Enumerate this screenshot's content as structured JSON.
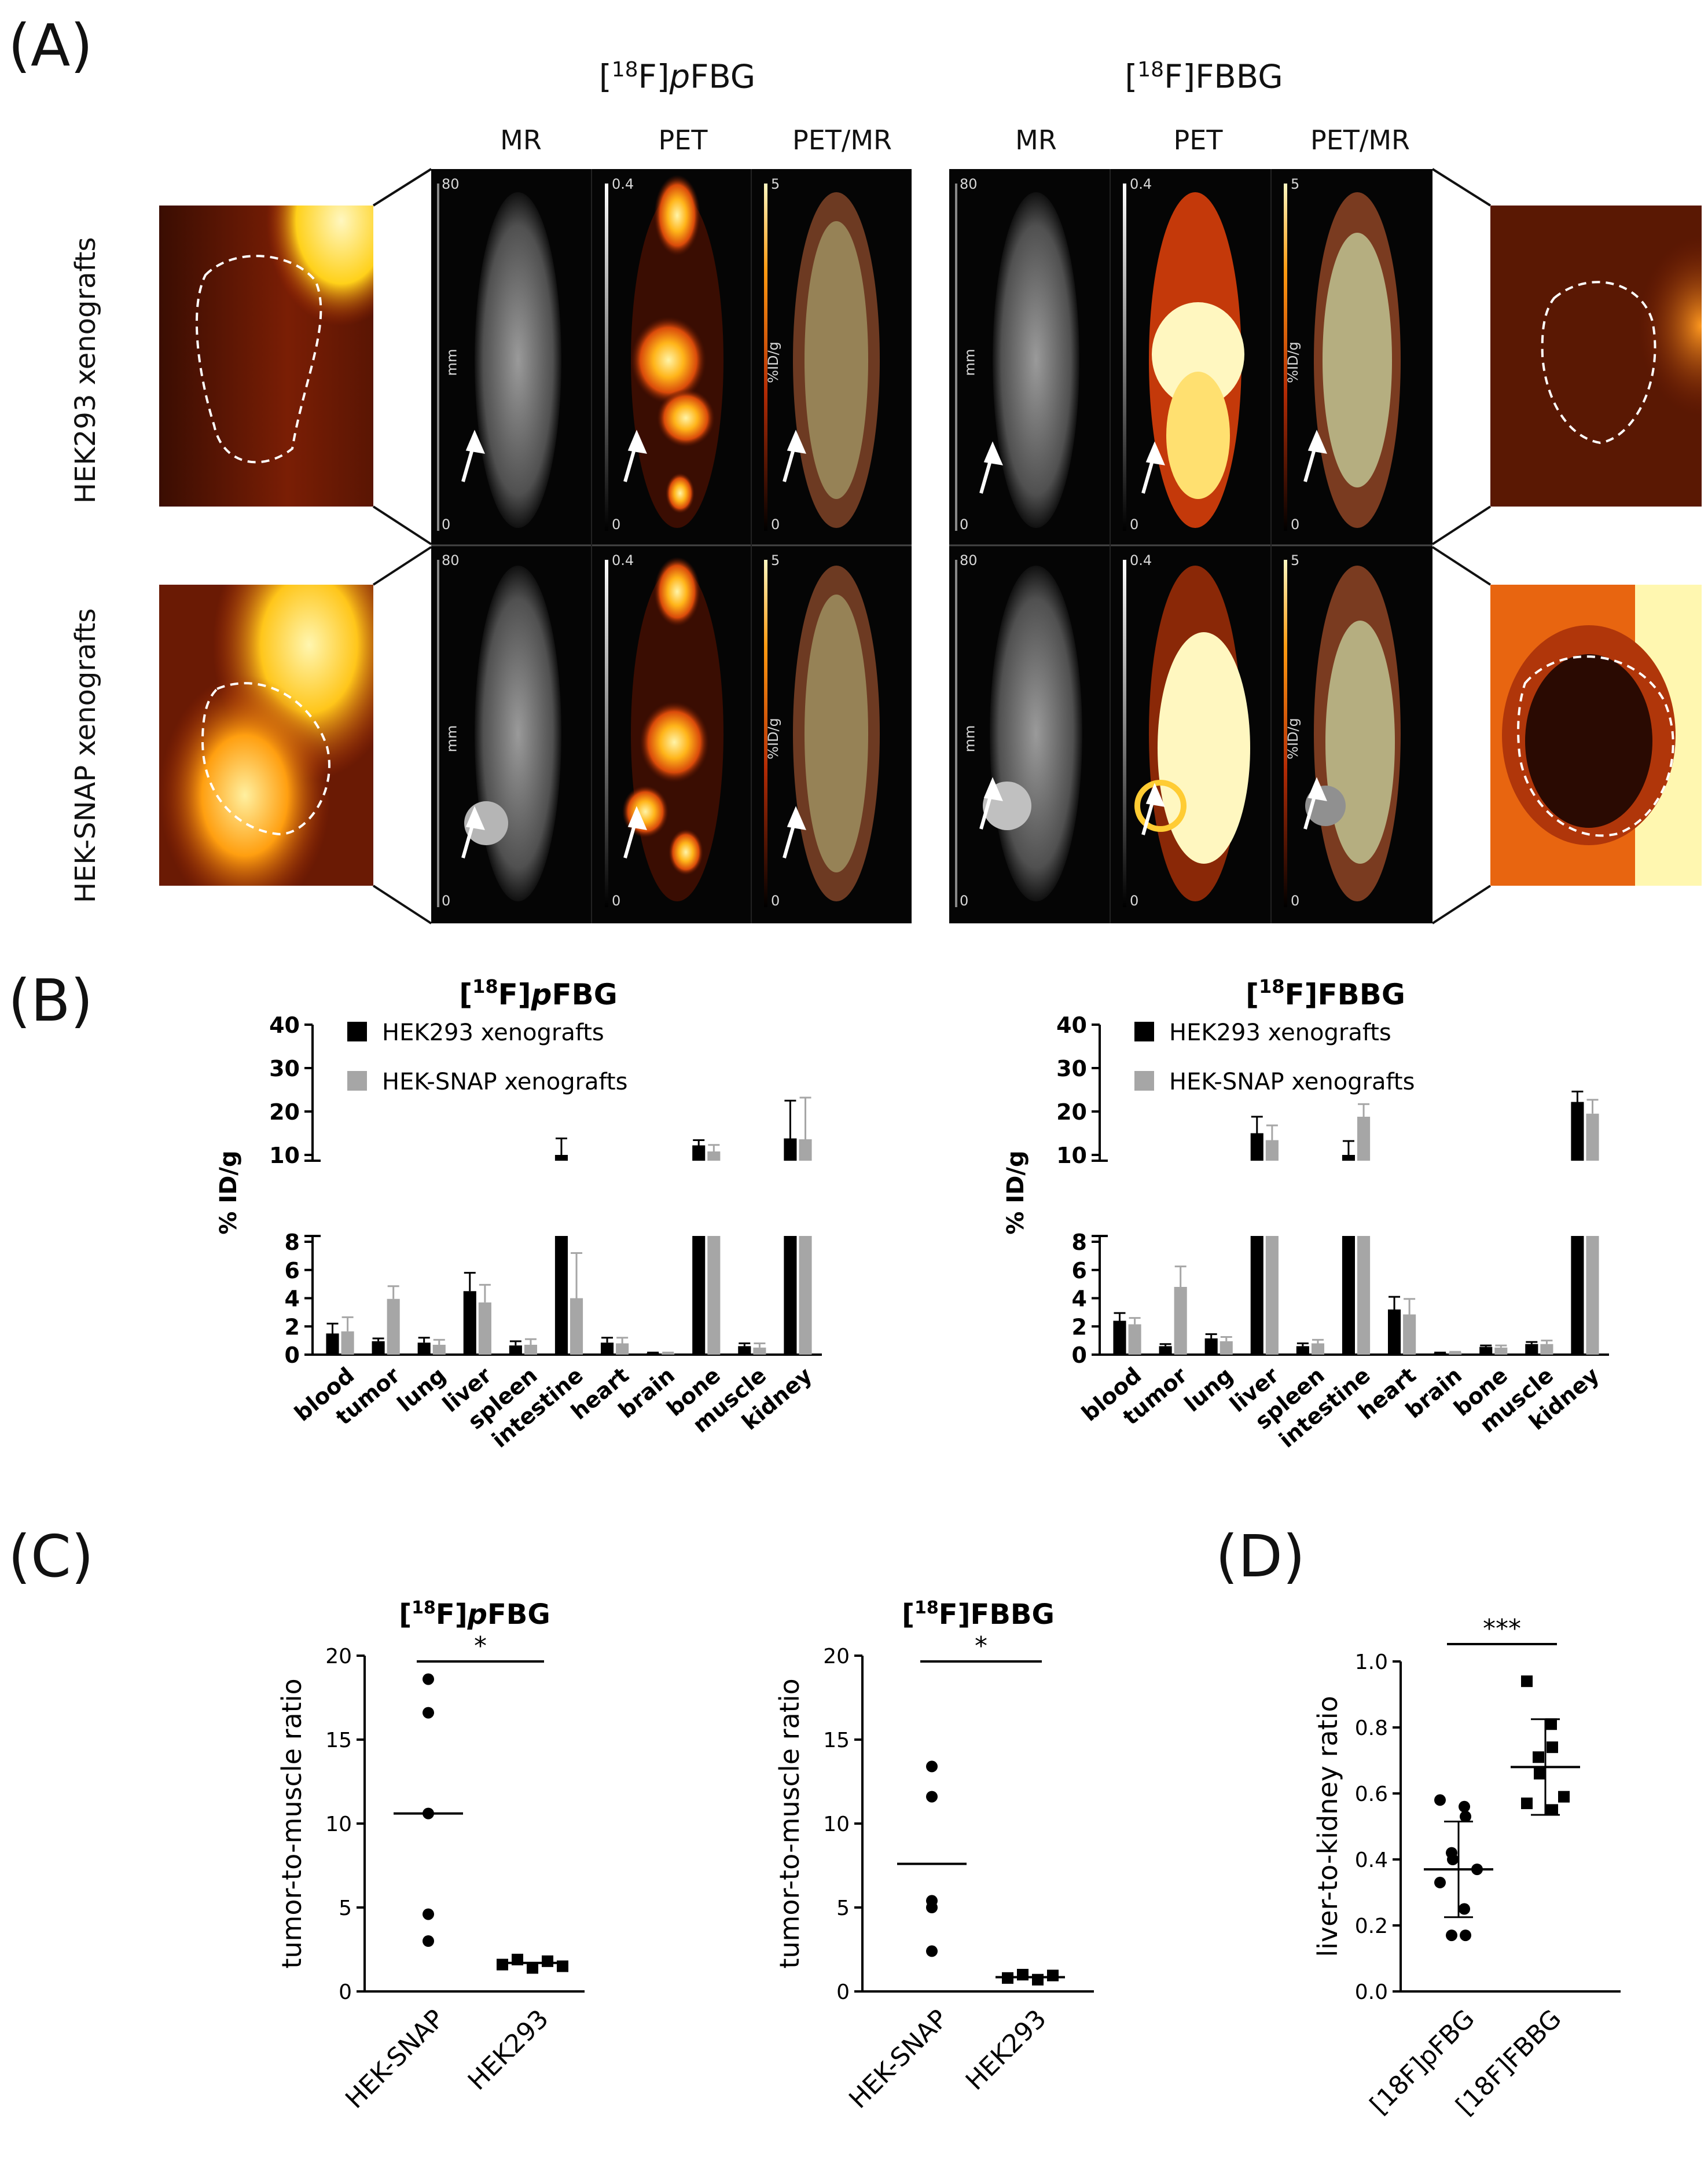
{
  "panelA": {
    "letter": "(A)",
    "tracer_left": "[18F]pFBG",
    "tracer_right": "[18F]FBBG",
    "columns": [
      "MR",
      "PET",
      "PET/MR"
    ],
    "rows": [
      "HEK293 xenografts",
      "HEK-SNAP xenografts"
    ],
    "scales": {
      "mr": {
        "max": "80",
        "min": "0",
        "unit": "mm"
      },
      "pet": {
        "max": "0.4",
        "min": "0"
      },
      "petmr": {
        "max": "5",
        "min": "0",
        "unit": "%ID/g"
      }
    },
    "colors": {
      "mr": "#8a8a8a",
      "pet_hot": "#ffcc33",
      "pet_mid": "#d9480f",
      "fusion": "#c9d6a0"
    }
  },
  "panelB": {
    "letter": "(B)",
    "charts": [
      {
        "title_prefix": "[",
        "title_sup": "18",
        "title_suffix": "F]pFBG",
        "title_italic": "p",
        "legend": [
          "HEK293 xenografts",
          "HEK-SNAP xenografts"
        ],
        "ylabel": "% ID/g"
      },
      {
        "title_prefix": "[",
        "title_sup": "18",
        "title_suffix": "F]FBBG",
        "title_italic": "",
        "legend": [
          "HEK293 xenografts",
          "HEK-SNAP xenografts"
        ],
        "ylabel": "% ID/g"
      }
    ]
  },
  "panelC": {
    "letter": "(C)",
    "charts": [
      {
        "title_sup": "18",
        "title_rest": "F]",
        "title_ital": "p",
        "title_end": "FBG",
        "ylabel": "tumor-to-muscle ratio",
        "sig": "*"
      },
      {
        "title_sup": "18",
        "title_rest": "F]FBBG",
        "title_ital": "",
        "title_end": "",
        "ylabel": "tumor-to-muscle ratio",
        "sig": "*"
      }
    ]
  },
  "panelD": {
    "letter": "(D)",
    "ylabel": "liver-to-kidney ratio",
    "sig": "***"
  },
  "chart_data": [
    {
      "type": "bar",
      "title": "[18F]pFBG",
      "ylabel": "% ID/g",
      "categories": [
        "blood",
        "tumor",
        "lung",
        "liver",
        "spleen",
        "intestine",
        "heart",
        "brain",
        "bone",
        "muscle",
        "kidney"
      ],
      "series": [
        {
          "name": "HEK293 xenografts",
          "color": "#000000",
          "values": [
            1.5,
            0.95,
            0.85,
            4.5,
            0.65,
            10.0,
            0.85,
            0.1,
            12.2,
            0.6,
            13.8
          ],
          "errors": [
            0.7,
            0.2,
            0.35,
            1.3,
            0.3,
            3.8,
            0.35,
            0.05,
            1.2,
            0.2,
            8.7
          ]
        },
        {
          "name": "HEK-SNAP xenografts",
          "color": "#a6a6a6",
          "values": [
            1.65,
            3.95,
            0.7,
            3.7,
            0.7,
            4.0,
            0.8,
            0.1,
            10.8,
            0.5,
            13.6
          ],
          "errors": [
            1.0,
            0.9,
            0.35,
            1.25,
            0.4,
            3.2,
            0.4,
            0.05,
            1.5,
            0.3,
            9.6
          ]
        }
      ],
      "yticks": [
        "0",
        "2",
        "4",
        "6",
        "8",
        "10",
        "20",
        "30",
        "40"
      ],
      "ylim": [
        0,
        40
      ],
      "axis_break": [
        8,
        10
      ]
    },
    {
      "type": "bar",
      "title": "[18F]FBBG",
      "ylabel": "% ID/g",
      "categories": [
        "blood",
        "tumor",
        "lung",
        "liver",
        "spleen",
        "intestine",
        "heart",
        "brain",
        "bone",
        "muscle",
        "kidney"
      ],
      "series": [
        {
          "name": "HEK293 xenografts",
          "color": "#000000",
          "values": [
            2.4,
            0.6,
            1.15,
            15.0,
            0.6,
            9.2,
            3.2,
            0.1,
            0.55,
            0.75,
            22.2
          ],
          "errors": [
            0.55,
            0.15,
            0.3,
            3.8,
            0.2,
            4.0,
            0.9,
            0.05,
            0.1,
            0.15,
            2.4
          ]
        },
        {
          "name": "HEK-SNAP xenografts",
          "color": "#a6a6a6",
          "values": [
            2.15,
            4.8,
            0.95,
            13.4,
            0.8,
            18.8,
            2.85,
            0.15,
            0.5,
            0.75,
            19.5
          ],
          "errors": [
            0.45,
            1.45,
            0.3,
            3.4,
            0.25,
            2.9,
            1.1,
            0.05,
            0.15,
            0.25,
            3.2
          ]
        }
      ],
      "yticks": [
        "0",
        "2",
        "4",
        "6",
        "8",
        "10",
        "20",
        "30",
        "40"
      ],
      "ylim": [
        0,
        40
      ],
      "axis_break": [
        8,
        10
      ]
    },
    {
      "type": "scatter",
      "title": "[18F]pFBG",
      "ylabel": "tumor-to-muscle ratio",
      "categories": [
        "HEK-SNAP",
        "HEK293"
      ],
      "ylim": [
        0,
        20
      ],
      "yticks": [
        "0",
        "5",
        "10",
        "15",
        "20"
      ],
      "series": [
        {
          "name": "HEK-SNAP",
          "marker": "circle",
          "values": [
            18.6,
            16.6,
            10.6,
            4.6,
            3.0
          ],
          "mean": 10.6
        },
        {
          "name": "HEK293",
          "marker": "square",
          "values": [
            1.6,
            1.9,
            1.4,
            1.8,
            1.5
          ],
          "mean": 1.7
        }
      ],
      "significance": "*"
    },
    {
      "type": "scatter",
      "title": "[18F]FBBG",
      "ylabel": "tumor-to-muscle ratio",
      "categories": [
        "HEK-SNAP",
        "HEK293"
      ],
      "ylim": [
        0,
        20
      ],
      "yticks": [
        "0",
        "5",
        "10",
        "15",
        "20"
      ],
      "series": [
        {
          "name": "HEK-SNAP",
          "marker": "circle",
          "values": [
            13.4,
            11.6,
            5.4,
            5.0,
            2.4
          ],
          "mean": 7.6
        },
        {
          "name": "HEK293",
          "marker": "square",
          "values": [
            0.8,
            1.0,
            0.7,
            0.95
          ],
          "mean": 0.85
        }
      ],
      "significance": "*"
    },
    {
      "type": "scatter",
      "title": "",
      "ylabel": "liver-to-kidney ratio",
      "categories": [
        "[18F]pFBG",
        "[18F]FBBG"
      ],
      "ylim": [
        0,
        1.0
      ],
      "yticks": [
        "0.0",
        "0.2",
        "0.4",
        "0.6",
        "0.8",
        "1.0"
      ],
      "series": [
        {
          "name": "[18F]pFBG",
          "marker": "circle",
          "values": [
            0.58,
            0.56,
            0.53,
            0.42,
            0.4,
            0.37,
            0.33,
            0.25,
            0.17,
            0.17
          ],
          "mean": 0.37,
          "sd": 0.145
        },
        {
          "name": "[18F]FBBG",
          "marker": "square",
          "values": [
            0.94,
            0.81,
            0.74,
            0.71,
            0.66,
            0.59,
            0.57,
            0.55,
            0.55
          ],
          "mean": 0.68,
          "sd": 0.145
        }
      ],
      "significance": "***"
    }
  ]
}
